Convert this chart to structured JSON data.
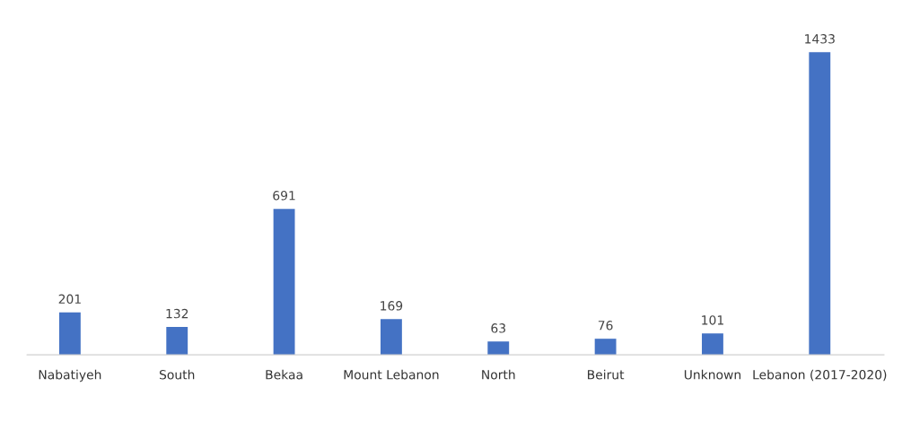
{
  "chart_data": {
    "type": "bar",
    "categories": [
      "Nabatiyeh",
      "South",
      "Bekaa",
      "Mount Lebanon",
      "North",
      "Beirut",
      "Unknown",
      "Lebanon (2017-2020)"
    ],
    "values": [
      201,
      132,
      691,
      169,
      63,
      76,
      101,
      1433
    ],
    "color": "#4472c4",
    "data_labels": true
  }
}
